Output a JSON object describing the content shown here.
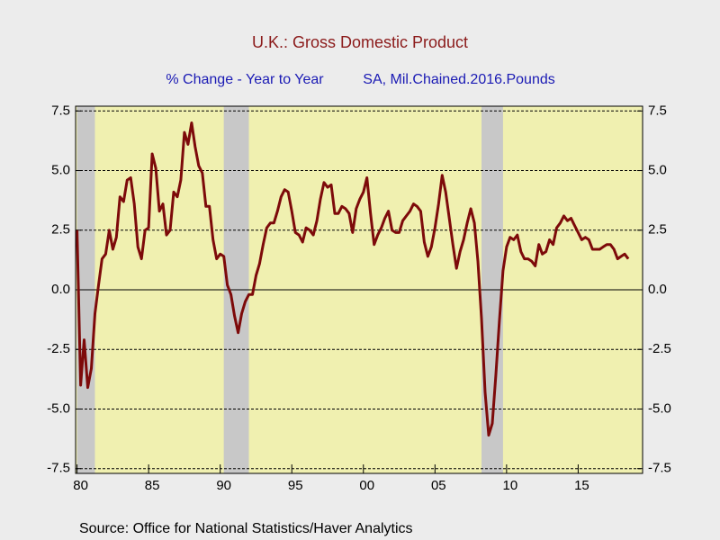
{
  "chart_data": {
    "type": "line",
    "title": "U.K.: Gross Domestic Product",
    "subtitle": [
      "% Change - Year to Year",
      "SA, Mil.Chained.2016.Pounds"
    ],
    "source": "Source:  Office for National Statistics/Haver Analytics",
    "xlim": [
      1979.9,
      2019.5
    ],
    "ylim": [
      -7.7,
      7.7
    ],
    "xticks": [
      {
        "value": 1980,
        "label": "80"
      },
      {
        "value": 1985,
        "label": "85"
      },
      {
        "value": 1990,
        "label": "90"
      },
      {
        "value": 1995,
        "label": "95"
      },
      {
        "value": 2000,
        "label": "00"
      },
      {
        "value": 2005,
        "label": "05"
      },
      {
        "value": 2010,
        "label": "10"
      },
      {
        "value": 2015,
        "label": "15"
      }
    ],
    "yticks": [
      7.5,
      {
        "value": 5,
        "label": "5.0"
      },
      2.5,
      {
        "value": 0,
        "label": "0.0"
      },
      -2.5,
      {
        "value": -5,
        "label": "-5.0"
      },
      -7.5
    ],
    "grid": true,
    "shaded_ranges": [
      [
        1980,
        1981.25
      ],
      [
        1990.25,
        1992
      ],
      [
        2008.25,
        2009.75
      ]
    ],
    "shade_color": "#c8c8c8",
    "background": "#f0f0b0",
    "series": [
      {
        "color": "#7d0a0a",
        "x": [
          1980,
          1980.25,
          1980.5,
          1980.75,
          1981,
          1981.25,
          1981.5,
          1981.75,
          1982,
          1982.25,
          1982.5,
          1982.75,
          1983,
          1983.25,
          1983.5,
          1983.75,
          1984,
          1984.25,
          1984.5,
          1984.75,
          1985,
          1985.25,
          1985.5,
          1985.75,
          1986,
          1986.25,
          1986.5,
          1986.75,
          1987,
          1987.25,
          1987.5,
          1987.75,
          1988,
          1988.25,
          1988.5,
          1988.75,
          1989,
          1989.25,
          1989.5,
          1989.75,
          1990,
          1990.25,
          1990.5,
          1990.75,
          1991,
          1991.25,
          1991.5,
          1991.75,
          1992,
          1992.25,
          1992.5,
          1992.75,
          1993,
          1993.25,
          1993.5,
          1993.75,
          1994,
          1994.25,
          1994.5,
          1994.75,
          1995,
          1995.25,
          1995.5,
          1995.75,
          1996,
          1996.25,
          1996.5,
          1996.75,
          1997,
          1997.25,
          1997.5,
          1997.75,
          1998,
          1998.25,
          1998.5,
          1998.75,
          1999,
          1999.25,
          1999.5,
          1999.75,
          2000,
          2000.25,
          2000.5,
          2000.75,
          2001,
          2001.25,
          2001.5,
          2001.75,
          2002,
          2002.25,
          2002.5,
          2002.75,
          2003,
          2003.25,
          2003.5,
          2003.75,
          2004,
          2004.25,
          2004.5,
          2004.75,
          2005,
          2005.25,
          2005.5,
          2005.75,
          2006,
          2006.25,
          2006.5,
          2006.75,
          2007,
          2007.25,
          2007.5,
          2007.75,
          2008,
          2008.25,
          2008.5,
          2008.75,
          2009,
          2009.25,
          2009.5,
          2009.75,
          2010,
          2010.25,
          2010.5,
          2010.75,
          2011,
          2011.25,
          2011.5,
          2011.75,
          2012,
          2012.25,
          2012.5,
          2012.75,
          2013,
          2013.25,
          2013.5,
          2013.75,
          2014,
          2014.25,
          2014.5,
          2014.75,
          2015,
          2015.25,
          2015.5,
          2015.75,
          2016,
          2016.25,
          2016.5,
          2016.75,
          2017,
          2017.25,
          2017.5,
          2017.75,
          2018,
          2018.25,
          2018.5
        ],
        "values": [
          2.5,
          -4.0,
          -2.1,
          -4.1,
          -3.3,
          -1.0,
          0.2,
          1.3,
          1.5,
          2.5,
          1.7,
          2.2,
          3.9,
          3.7,
          4.6,
          4.7,
          3.6,
          1.8,
          1.3,
          2.5,
          2.6,
          5.7,
          5.1,
          3.3,
          3.6,
          2.3,
          2.5,
          4.1,
          3.9,
          4.6,
          6.6,
          6.1,
          7.0,
          6.0,
          5.2,
          4.9,
          3.5,
          3.5,
          2.1,
          1.3,
          1.5,
          1.4,
          0.2,
          -0.2,
          -1.1,
          -1.8,
          -1.0,
          -0.5,
          -0.2,
          -0.2,
          0.6,
          1.1,
          1.9,
          2.6,
          2.8,
          2.8,
          3.3,
          3.9,
          4.2,
          4.1,
          3.3,
          2.4,
          2.3,
          2.0,
          2.6,
          2.5,
          2.3,
          2.9,
          3.8,
          4.5,
          4.3,
          4.4,
          3.2,
          3.2,
          3.5,
          3.4,
          3.2,
          2.4,
          3.4,
          3.8,
          4.1,
          4.7,
          3.2,
          1.9,
          2.3,
          2.6,
          3.0,
          3.3,
          2.5,
          2.4,
          2.4,
          2.9,
          3.1,
          3.3,
          3.6,
          3.5,
          3.3,
          2.0,
          1.4,
          1.8,
          2.6,
          3.6,
          4.8,
          4.1,
          3.0,
          1.9,
          0.9,
          1.6,
          2.1,
          2.8,
          3.4,
          2.8,
          1.2,
          -1.2,
          -4.3,
          -6.1,
          -5.6,
          -3.6,
          -1.3,
          0.8,
          1.8,
          2.2,
          2.1,
          2.3,
          1.6,
          1.3,
          1.3,
          1.2,
          1.0,
          1.9,
          1.5,
          1.6,
          2.1,
          1.9,
          2.6,
          2.8,
          3.1,
          2.9,
          3.0,
          2.7,
          2.4,
          2.1,
          2.2,
          2.1,
          1.7,
          1.7,
          1.7,
          1.8,
          1.9,
          1.9,
          1.7,
          1.3,
          1.4,
          1.5,
          1.3
        ]
      }
    ]
  }
}
